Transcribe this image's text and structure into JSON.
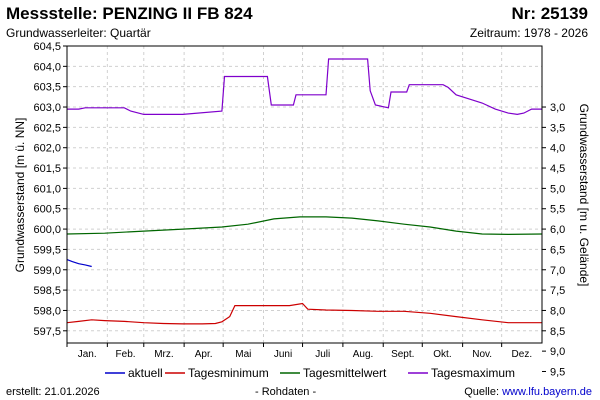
{
  "header": {
    "title": "Messstelle: PENZING II FB 824",
    "number": "Nr: 25139",
    "aquifer": "Grundwasserleiter: Quartär",
    "period": "Zeitraum: 1978 - 2026"
  },
  "footer": {
    "created_label": "erstellt:",
    "created_date": "21.01.2026",
    "raw": "- Rohdaten -",
    "source_label": "Quelle:",
    "source_link": "www.lfu.bayern.de"
  },
  "chart_data": {
    "type": "line",
    "ylabel": "Grundwasserstand [m ü. NN]",
    "ylabel_right": "Grundwasserstand [m u. Gelände]",
    "ylim": [
      597.2,
      604.5
    ],
    "yticks": [
      "597,5",
      "598,0",
      "598,5",
      "599,0",
      "599,5",
      "600,0",
      "600,5",
      "601,0",
      "601,5",
      "602,0",
      "602,5",
      "603,0",
      "603,5",
      "604,0",
      "604,5"
    ],
    "ytick_values": [
      597.5,
      598.0,
      598.5,
      599.0,
      599.5,
      600.0,
      600.5,
      601.0,
      601.5,
      602.0,
      602.5,
      603.0,
      603.5,
      604.0,
      604.5
    ],
    "right_axis_reference": 606.0,
    "yticks_right": [
      "3,0",
      "3,5",
      "4,0",
      "4,5",
      "5,0",
      "5,5",
      "6,0",
      "6,5",
      "7,0",
      "7,5",
      "8,0",
      "8,5",
      "9,0",
      "9,5"
    ],
    "ytick_right_values": [
      3.0,
      3.5,
      4.0,
      4.5,
      5.0,
      5.5,
      6.0,
      6.5,
      7.0,
      7.5,
      8.0,
      8.5,
      9.0,
      9.5
    ],
    "months": [
      "Jan.",
      "Feb.",
      "Mrz.",
      "Apr.",
      "Mai",
      "Juni",
      "Juli",
      "Aug.",
      "Sept.",
      "Okt.",
      "Nov.",
      "Dez."
    ],
    "grid": true,
    "legend_position": "bottom",
    "series": [
      {
        "name": "aktuell",
        "color": "#0000cc",
        "x": [
          1,
          5,
          10,
          15,
          20
        ],
        "y": [
          599.25,
          599.2,
          599.15,
          599.12,
          599.08
        ]
      },
      {
        "name": "Tagesminimum",
        "color": "#cc0000",
        "x": [
          1,
          10,
          20,
          30,
          45,
          60,
          75,
          90,
          105,
          115,
          120,
          126,
          130,
          145,
          160,
          172,
          182,
          186,
          200,
          220,
          240,
          260,
          280,
          300,
          320,
          340,
          360,
          366
        ],
        "y": [
          597.7,
          597.73,
          597.77,
          597.75,
          597.73,
          597.7,
          597.68,
          597.67,
          597.67,
          597.68,
          597.72,
          597.85,
          598.12,
          598.12,
          598.12,
          598.12,
          598.17,
          598.03,
          598.01,
          598.0,
          597.98,
          597.98,
          597.93,
          597.85,
          597.77,
          597.7,
          597.7,
          597.7
        ]
      },
      {
        "name": "Tagesmittelwert",
        "color": "#006600",
        "x": [
          1,
          30,
          60,
          90,
          120,
          140,
          160,
          180,
          200,
          220,
          240,
          260,
          280,
          300,
          320,
          340,
          366
        ],
        "y": [
          599.88,
          599.9,
          599.95,
          600.0,
          600.05,
          600.12,
          600.25,
          600.3,
          600.3,
          600.27,
          600.2,
          600.12,
          600.05,
          599.95,
          599.88,
          599.87,
          599.88
        ]
      },
      {
        "name": "Tagesmaximum",
        "color": "#7f00cc",
        "x": [
          1,
          10,
          15,
          45,
          50,
          60,
          90,
          120,
          122,
          155,
          158,
          175,
          177,
          200,
          202,
          232,
          234,
          238,
          248,
          250,
          262,
          264,
          290,
          294,
          300,
          310,
          320,
          330,
          340,
          347,
          352,
          358,
          366
        ],
        "y": [
          602.95,
          602.95,
          602.98,
          602.98,
          602.9,
          602.82,
          602.82,
          602.9,
          603.75,
          603.75,
          603.05,
          603.05,
          603.3,
          603.3,
          604.18,
          604.18,
          603.4,
          603.05,
          602.98,
          603.37,
          603.37,
          603.55,
          603.55,
          603.48,
          603.3,
          603.2,
          603.1,
          602.95,
          602.85,
          602.82,
          602.85,
          602.95,
          602.95
        ]
      }
    ]
  }
}
